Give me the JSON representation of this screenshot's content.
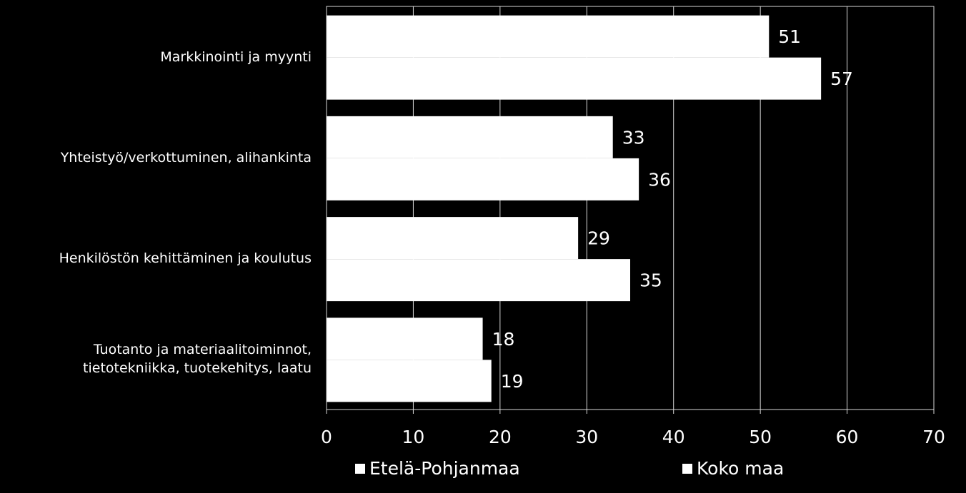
{
  "chart_data": {
    "type": "bar",
    "orientation": "horizontal",
    "categories": [
      "Markkinointi ja myynti",
      "Yhteistyö/verkottuminen, alihankinta",
      "Henkilöstön kehittäminen ja koulutus",
      "Tuotanto ja materiaalitoiminnot,\ntietotekniikka, tuotekehitys, laatu"
    ],
    "series": [
      {
        "name": "Etelä-Pohjanmaa",
        "values": [
          51,
          33,
          29,
          18
        ],
        "color": "#ffffff"
      },
      {
        "name": "Koko maa",
        "values": [
          57,
          36,
          35,
          19
        ],
        "color": "#ffffff"
      }
    ],
    "xlim": [
      0,
      70
    ],
    "xticks": [
      "0",
      "10",
      "20",
      "30",
      "40",
      "50",
      "60",
      "70"
    ],
    "grid": true,
    "legend_position": "bottom",
    "background": "#000000",
    "foreground": "#ffffff"
  }
}
